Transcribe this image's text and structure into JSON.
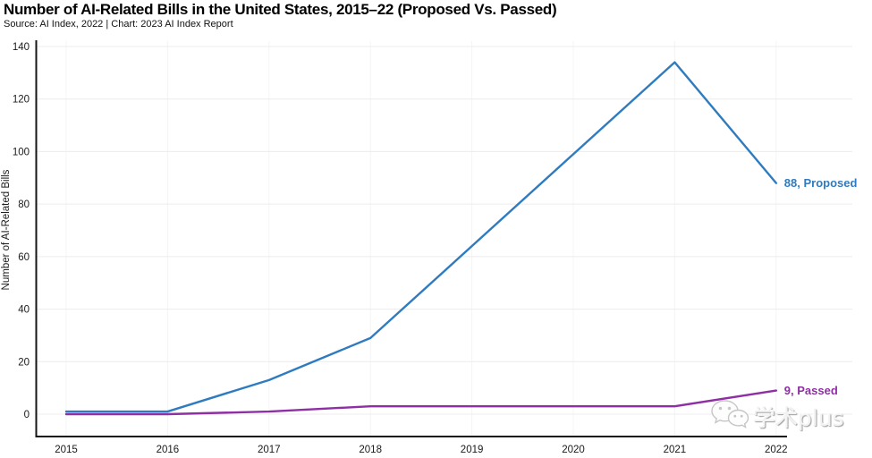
{
  "header": {
    "title": "Number of AI-Related Bills in the United States, 2015–22 (Proposed Vs. Passed)",
    "subtitle": "Source: AI Index, 2022 | Chart: 2023 AI Index Report"
  },
  "chart_data": {
    "type": "line",
    "title": "Number of AI-Related Bills in the United States, 2015–22 (Proposed Vs. Passed)",
    "x": [
      2015,
      2016,
      2017,
      2018,
      2019,
      2020,
      2021,
      2022
    ],
    "series": [
      {
        "name": "Proposed",
        "color": "#2f7bbf",
        "values": [
          1,
          1,
          13,
          29,
          64,
          99,
          134,
          88
        ],
        "end_label": "88, Proposed"
      },
      {
        "name": "Passed",
        "color": "#8e2fa3",
        "values": [
          0,
          0,
          1,
          3,
          3,
          3,
          3,
          9
        ],
        "end_label": "9, Passed"
      }
    ],
    "xlabel": "",
    "ylabel": "Number of AI-Related Bills",
    "ylim": [
      0,
      140
    ],
    "yticks": [
      0,
      20,
      40,
      60,
      80,
      100,
      120,
      140
    ],
    "grid": true,
    "legend_position": "end-of-line"
  },
  "watermark": {
    "text": "学术plus"
  }
}
